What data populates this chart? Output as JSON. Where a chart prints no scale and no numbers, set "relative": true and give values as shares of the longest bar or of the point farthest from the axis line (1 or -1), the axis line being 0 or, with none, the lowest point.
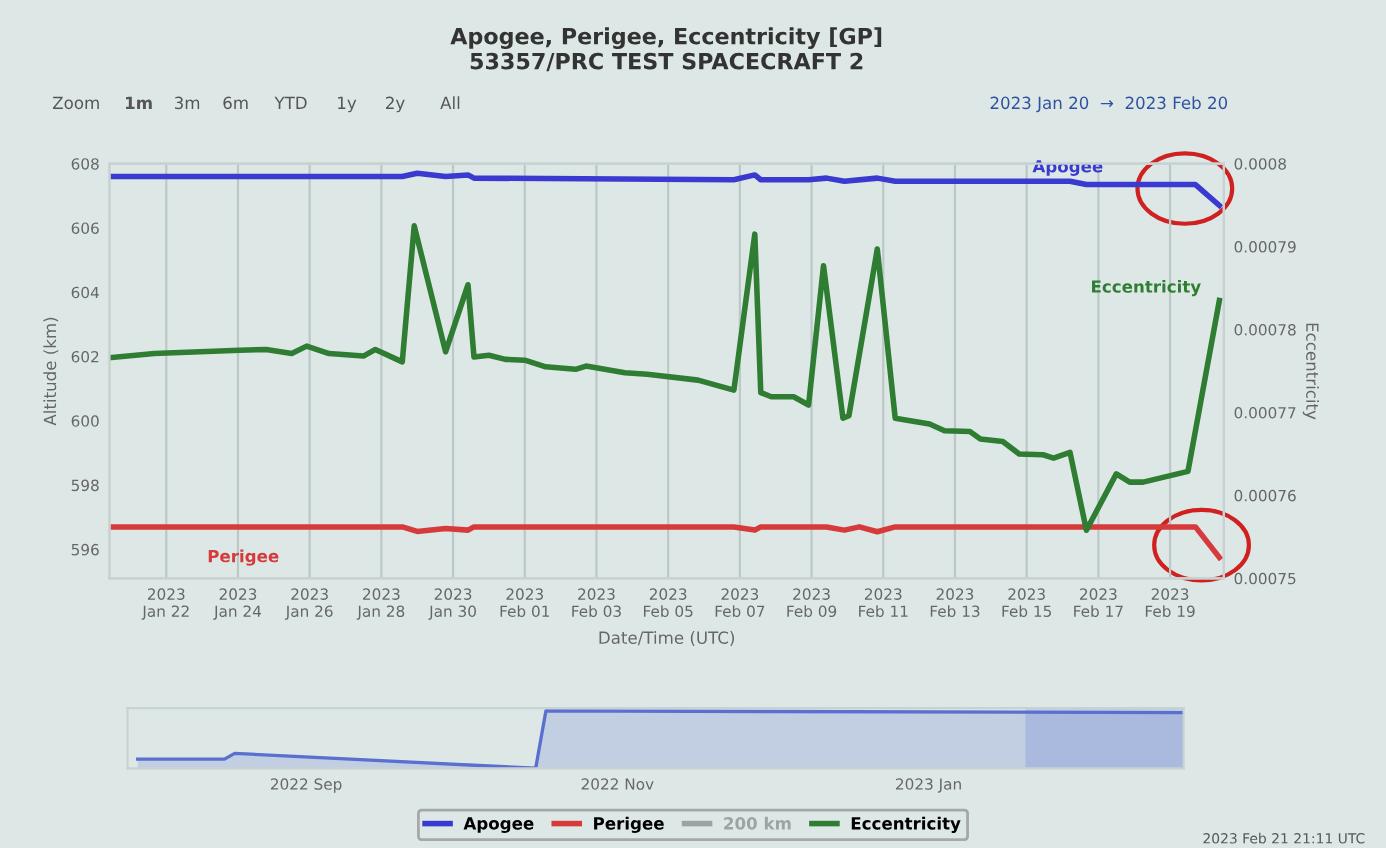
{
  "chart_data": [
    {
      "type": "line",
      "title": "Apogee, Perigee, Eccentricity [GP]\n53357/PRC TEST SPACECRAFT 2",
      "xlabel": "Date/Time (UTC)",
      "ylabel": "Altitude (km)",
      "y2label": "Eccentricity",
      "annotations": [
        "Zoom",
        "1m",
        "3m",
        "6m",
        "YTD",
        "1y",
        "2y",
        "All",
        "2023 Jan 20  →  2023 Feb 20",
        "2023 Feb 21 21:11 UTC"
      ],
      "xlim": [
        "2023-01-20T10:00",
        "2023-02-20T12:00"
      ],
      "xticks": [
        {
          "value": "2023-01-22",
          "label": "2023\nJan 22"
        },
        {
          "value": "2023-01-24",
          "label": "2023\nJan 24"
        },
        {
          "value": "2023-01-26",
          "label": "2023\nJan 26"
        },
        {
          "value": "2023-01-28",
          "label": "2023\nJan 28"
        },
        {
          "value": "2023-01-30",
          "label": "2023\nJan 30"
        },
        {
          "value": "2023-02-01",
          "label": "2023\nFeb 01"
        },
        {
          "value": "2023-02-03",
          "label": "2023\nFeb 03"
        },
        {
          "value": "2023-02-05",
          "label": "2023\nFeb 05"
        },
        {
          "value": "2023-02-07",
          "label": "2023\nFeb 07"
        },
        {
          "value": "2023-02-09",
          "label": "2023\nFeb 09"
        },
        {
          "value": "2023-02-11",
          "label": "2023\nFeb 11"
        },
        {
          "value": "2023-02-13",
          "label": "2023\nFeb 13"
        },
        {
          "value": "2023-02-15",
          "label": "2023\nFeb 15"
        },
        {
          "value": "2023-02-17",
          "label": "2023\nFeb 17"
        },
        {
          "value": "2023-02-19",
          "label": "2023\nFeb 19"
        }
      ],
      "ylim": [
        595.1,
        608
      ],
      "yticks": [
        596,
        598,
        600,
        602,
        604,
        606,
        608
      ],
      "y2lim": [
        0.00075,
        0.0008
      ],
      "y2ticks": [
        0.00075,
        0.00076,
        0.00077,
        0.00078,
        0.00079,
        0.0008
      ],
      "grid": "x",
      "legend": "bottom",
      "marker": "none",
      "line_style": "solid",
      "series": [
        {
          "name": "Apogee",
          "color": "#3a3ad0",
          "x": [
            "2023-01-20T10:00",
            "2023-01-28T14:00",
            "2023-01-29T00:00",
            "2023-01-29T19:00",
            "2023-01-30T10:00",
            "2023-01-30T14:00",
            "2023-02-06T20:00",
            "2023-02-07T10:00",
            "2023-02-07T14:00",
            "2023-02-08T22:00",
            "2023-02-09T10:00",
            "2023-02-09T22:00",
            "2023-02-10T20:00",
            "2023-02-11T08:00",
            "2023-02-16T05:00",
            "2023-02-16T16:00",
            "2023-02-19T17:00",
            "2023-02-20T09:00"
          ],
          "values": [
            607.6,
            607.6,
            607.7,
            607.6,
            607.65,
            607.55,
            607.5,
            607.65,
            607.5,
            607.5,
            607.55,
            607.45,
            607.55,
            607.45,
            607.45,
            607.35,
            607.35,
            606.7
          ]
        },
        {
          "name": "Perigee",
          "color": "#d63a3a",
          "x": [
            "2023-01-20T10:00",
            "2023-01-28T14:00",
            "2023-01-29T00:00",
            "2023-01-29T19:00",
            "2023-01-30T10:00",
            "2023-01-30T14:00",
            "2023-02-06T20:00",
            "2023-02-07T10:00",
            "2023-02-07T14:00",
            "2023-02-09T10:00",
            "2023-02-09T22:00",
            "2023-02-10T08:00",
            "2023-02-10T20:00",
            "2023-02-11T08:00",
            "2023-02-19T17:00",
            "2023-02-20T09:00"
          ],
          "values": [
            596.7,
            596.7,
            596.56,
            596.65,
            596.6,
            596.7,
            596.7,
            596.6,
            596.7,
            596.7,
            596.6,
            596.7,
            596.55,
            596.7,
            596.7,
            595.75
          ]
        },
        {
          "name": "200 km",
          "color": "#9aa4a4"
        },
        {
          "name": "Eccentricity",
          "color": "#2e7d32",
          "axis": "y2",
          "x": [
            "2023-01-20T10:00",
            "2023-01-21T16:00",
            "2023-01-24T01:00",
            "2023-01-24T19:00",
            "2023-01-25T12:00",
            "2023-01-25T22:00",
            "2023-01-26T13:00",
            "2023-01-27T12:00",
            "2023-01-27T20:00",
            "2023-01-28T14:00",
            "2023-01-28T22:00",
            "2023-01-29T19:00",
            "2023-01-30T10:00",
            "2023-01-30T14:00",
            "2023-01-31T00:00",
            "2023-01-31T11:00",
            "2023-02-01T00:00",
            "2023-02-01T14:00",
            "2023-02-02T10:00",
            "2023-02-02T17:00",
            "2023-02-03T19:00",
            "2023-02-04T10:00",
            "2023-02-05T20:00",
            "2023-02-06T20:00",
            "2023-02-07T10:00",
            "2023-02-07T14:00",
            "2023-02-07T21:00",
            "2023-02-08T12:00",
            "2023-02-08T22:00",
            "2023-02-09T08:00",
            "2023-02-09T21:00",
            "2023-02-10T01:00",
            "2023-02-10T20:00",
            "2023-02-11T08:00",
            "2023-02-12T07:00",
            "2023-02-12T17:00",
            "2023-02-13T10:00",
            "2023-02-13T17:00",
            "2023-02-14T08:00",
            "2023-02-14T19:00",
            "2023-02-15T11:00",
            "2023-02-15T18:00",
            "2023-02-16T05:00",
            "2023-02-16T16:00",
            "2023-02-17T12:00",
            "2023-02-17T21:00",
            "2023-02-18T06:00",
            "2023-02-19T12:00",
            "2023-02-20T09:00"
          ],
          "values": [
            0.0007766,
            0.0007771,
            0.0007775,
            0.0007776,
            0.0007771,
            0.000778,
            0.0007771,
            0.0007768,
            0.0007776,
            0.0007761,
            0.0007925,
            0.0007773,
            0.0007854,
            0.0007767,
            0.0007769,
            0.0007764,
            0.0007763,
            0.0007755,
            0.0007752,
            0.0007756,
            0.0007748,
            0.0007746,
            0.0007739,
            0.0007727,
            0.0007915,
            0.0007724,
            0.0007719,
            0.0007719,
            0.0007709,
            0.0007877,
            0.0007693,
            0.0007696,
            0.0007897,
            0.0007693,
            0.0007686,
            0.0007678,
            0.0007677,
            0.0007668,
            0.0007665,
            0.000765,
            0.0007649,
            0.0007645,
            0.0007652,
            0.0007558,
            0.0007626,
            0.0007616,
            0.0007616,
            0.0007629,
            0.0007835
          ]
        }
      ]
    },
    {
      "type": "area",
      "relative": true,
      "tick_labels": "x",
      "xlim": [
        "2022-07-28",
        "2023-02-20"
      ],
      "xticks": [
        {
          "value": "2022-09-01",
          "label": "2022 Sep"
        },
        {
          "value": "2022-11-01",
          "label": "2022 Nov"
        },
        {
          "value": "2023-01-01",
          "label": "2023 Jan"
        }
      ],
      "bands": [
        {
          "axis": "x",
          "from": "2023-01-20",
          "to": "2023-02-20",
          "color": "#a9bde0"
        }
      ],
      "series": [
        {
          "color": "#5a6fd0",
          "x": [
            "2022-07-30",
            "2022-08-16",
            "2022-08-18",
            "2022-10-16",
            "2022-10-18",
            "2022-12-01",
            "2023-02-20"
          ],
          "values": [
            0.16,
            0.16,
            0.26,
            0,
            1,
            0.99,
            0.97
          ]
        }
      ]
    }
  ]
}
